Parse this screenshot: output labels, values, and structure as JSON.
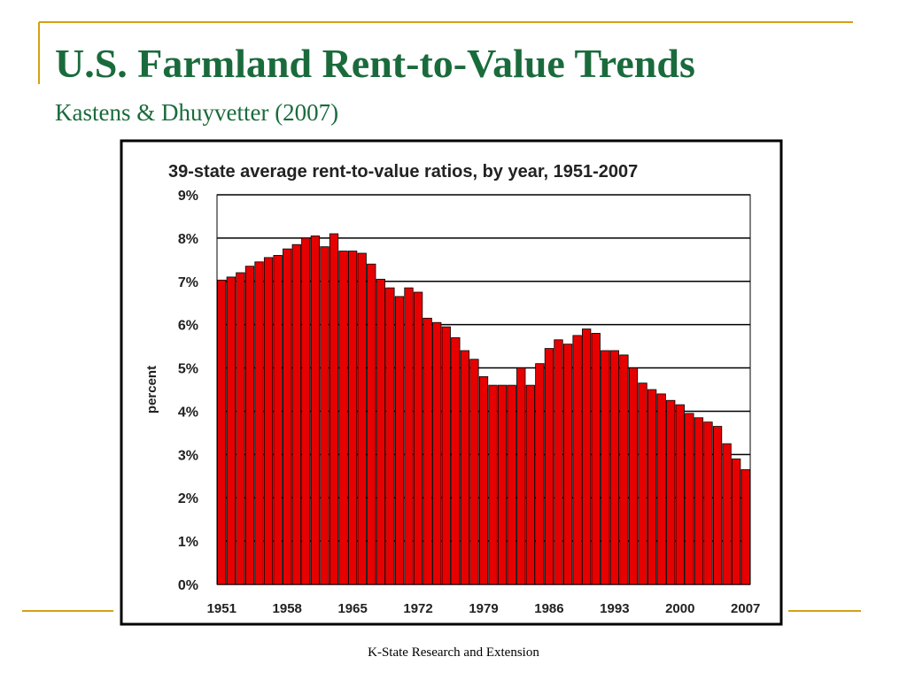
{
  "slide": {
    "title": "U.S. Farmland Rent-to-Value Trends",
    "subtitle": "Kastens & Dhuyvetter (2007)",
    "footer": "K-State Research and Extension"
  },
  "chart_data": {
    "type": "bar",
    "title": "39-state average rent-to-value ratios, by year, 1951-2007",
    "y_label": "percent",
    "categories": [
      "1951",
      null,
      null,
      null,
      null,
      null,
      null,
      "1958",
      null,
      null,
      null,
      null,
      null,
      null,
      "1965",
      null,
      null,
      null,
      null,
      null,
      null,
      "1972",
      null,
      null,
      null,
      null,
      null,
      null,
      "1979",
      null,
      null,
      null,
      null,
      null,
      null,
      "1986",
      null,
      null,
      null,
      null,
      null,
      null,
      "1993",
      null,
      null,
      null,
      null,
      null,
      null,
      "2000",
      null,
      null,
      null,
      null,
      null,
      null,
      "2007"
    ],
    "values": [
      7.03,
      7.1,
      7.2,
      7.35,
      7.45,
      7.55,
      7.6,
      7.75,
      7.85,
      8.0,
      8.05,
      7.8,
      8.1,
      7.7,
      7.7,
      7.65,
      7.4,
      7.05,
      6.85,
      6.65,
      6.85,
      6.75,
      6.15,
      6.05,
      5.95,
      5.7,
      5.4,
      5.2,
      4.8,
      4.6,
      4.6,
      4.6,
      5.0,
      4.6,
      5.1,
      5.45,
      5.65,
      5.55,
      5.75,
      5.9,
      5.8,
      5.4,
      5.4,
      5.3,
      5.0,
      4.65,
      4.5,
      4.4,
      4.25,
      4.15,
      3.95,
      3.85,
      3.75,
      3.65,
      3.25,
      2.9,
      2.65
    ],
    "color": "#e60000",
    "ylim": [
      0,
      9
    ],
    "yticks": [
      {
        "value": 0,
        "label": "0%"
      },
      {
        "value": 1,
        "label": "1%"
      },
      {
        "value": 2,
        "label": "2%"
      },
      {
        "value": 3,
        "label": "3%"
      },
      {
        "value": 4,
        "label": "4%"
      },
      {
        "value": 5,
        "label": "5%"
      },
      {
        "value": 6,
        "label": "6%"
      },
      {
        "value": 7,
        "label": "7%"
      },
      {
        "value": 8,
        "label": "8%"
      },
      {
        "value": 9,
        "label": "9%"
      }
    ],
    "grid": true
  }
}
